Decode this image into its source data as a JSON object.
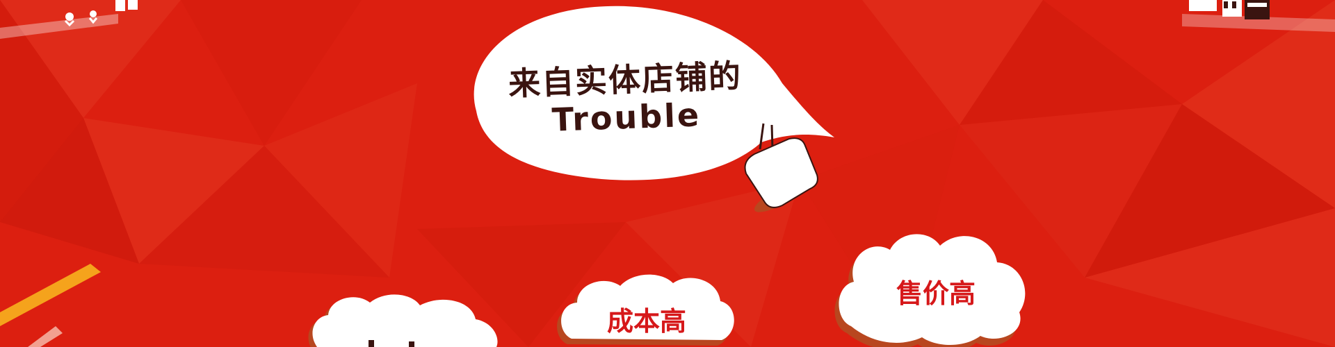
{
  "bubble": {
    "line1": "来自实体店铺的",
    "line2": "Trouble"
  },
  "clouds": [
    {
      "label": "成本高"
    },
    {
      "label": "售价高"
    },
    {
      "label": ""
    }
  ],
  "colors": {
    "background": "#dc1f10",
    "text_dark": "#3a1410",
    "text_red": "#d6181a",
    "cloud_shadow": "#b8471f",
    "white": "#ffffff"
  }
}
